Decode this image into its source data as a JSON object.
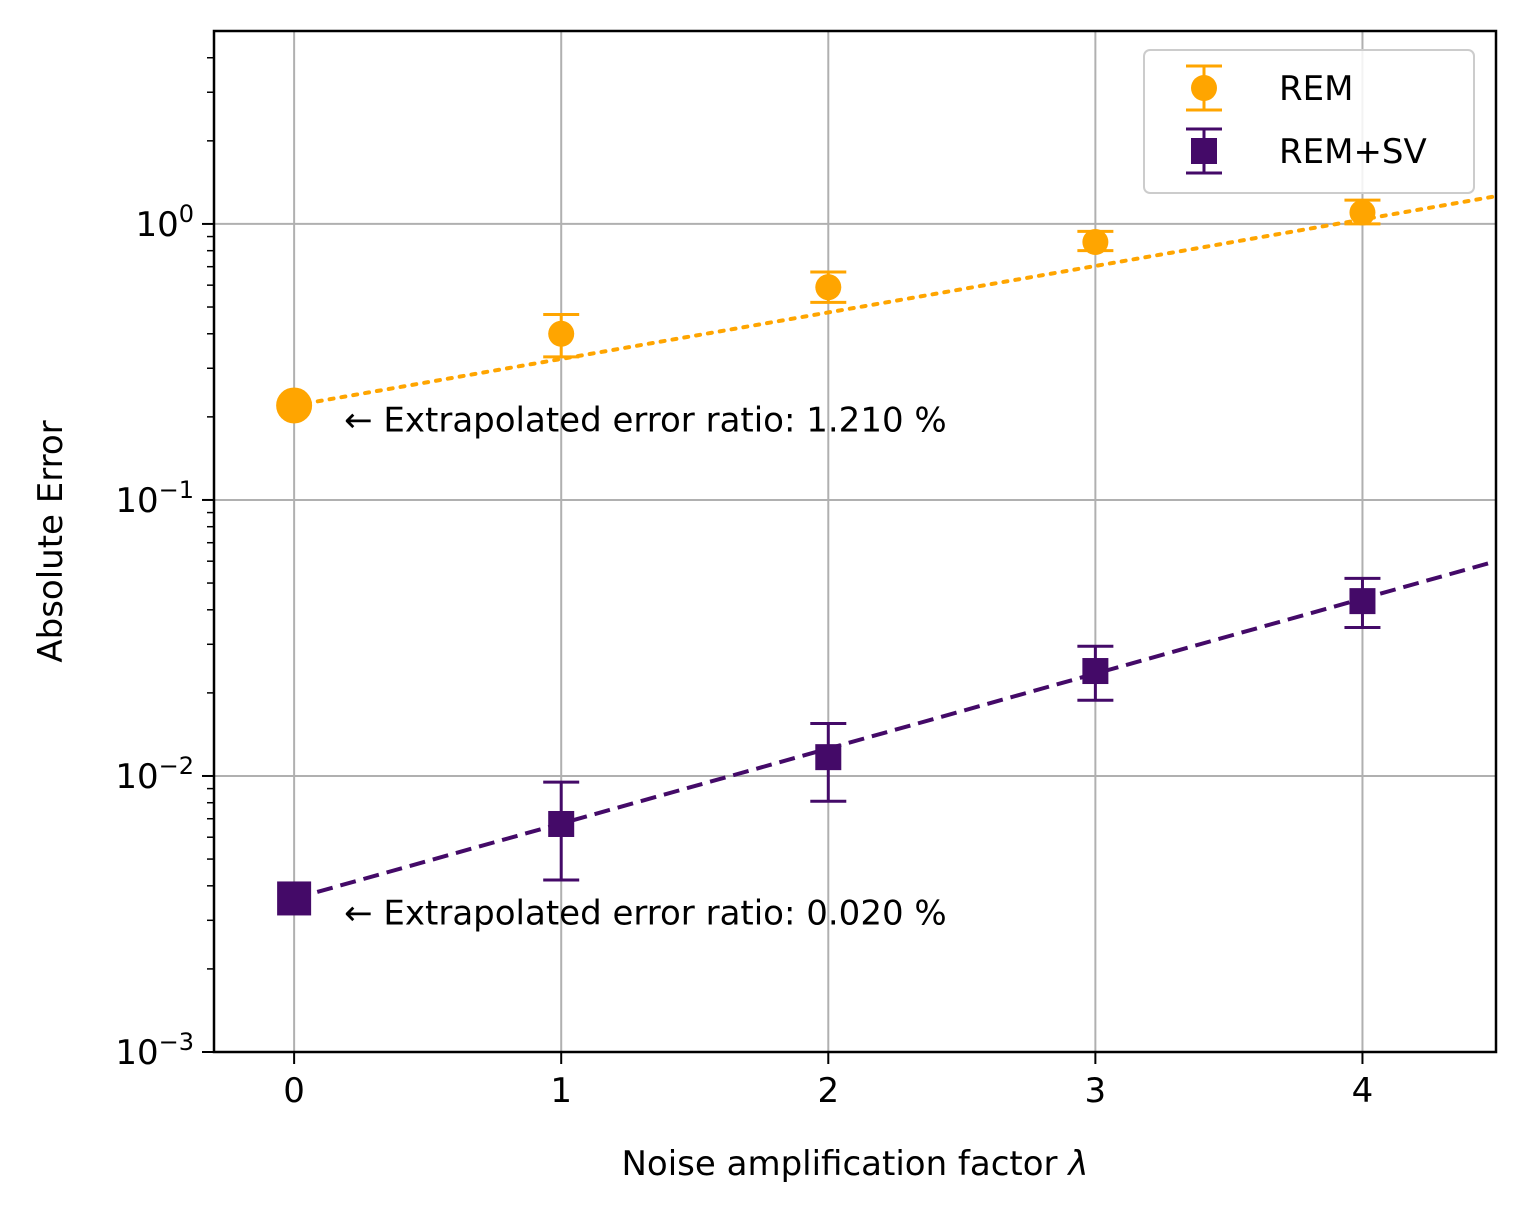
{
  "chart_data": {
    "type": "scatter",
    "xlabel": "Noise amplification factor",
    "xlabel_symbol": "λ",
    "ylabel": "Absolute Error",
    "xlim": [
      -0.3,
      4.5
    ],
    "ylim": [
      0.001,
      5
    ],
    "yscale": "log",
    "grid": true,
    "legend_position": "top-right",
    "x_ticks": [
      {
        "value": 0,
        "label": "0"
      },
      {
        "value": 1,
        "label": "1"
      },
      {
        "value": 2,
        "label": "2"
      },
      {
        "value": 3,
        "label": "3"
      },
      {
        "value": 4,
        "label": "4"
      }
    ],
    "y_ticks": [
      {
        "value": 0.001,
        "base": "10",
        "exp": "−3"
      },
      {
        "value": 0.01,
        "base": "10",
        "exp": "−2"
      },
      {
        "value": 0.1,
        "base": "10",
        "exp": "−1"
      },
      {
        "value": 1,
        "base": "10",
        "exp": "0"
      }
    ],
    "series": [
      {
        "name": "REM",
        "color": "#FFA500",
        "marker": "circle",
        "fit_style": "dotted",
        "x": [
          1,
          2,
          3,
          4
        ],
        "y": [
          0.4,
          0.59,
          0.86,
          1.1
        ],
        "y_err_low": [
          0.33,
          0.52,
          0.8,
          1.0
        ],
        "y_err_high": [
          0.47,
          0.67,
          0.94,
          1.22
        ],
        "fit": {
          "x0": 0,
          "y0": 0.22,
          "y_at_xmax": 1.26
        },
        "extrapolated": {
          "x": 0,
          "y": 0.22
        },
        "annotation": "← Extrapolated error ratio: 1.210 %"
      },
      {
        "name": "REM+SV",
        "color": "#440A68",
        "marker": "square",
        "fit_style": "dashed",
        "x": [
          1,
          2,
          3,
          4
        ],
        "y": [
          0.0067,
          0.0117,
          0.024,
          0.043
        ],
        "y_err_low": [
          0.0042,
          0.0081,
          0.0188,
          0.0345
        ],
        "y_err_high": [
          0.0095,
          0.0155,
          0.0295,
          0.052
        ],
        "fit": {
          "x0": 0,
          "y0": 0.0036,
          "y_at_xmax": 0.06
        },
        "extrapolated": {
          "x": 0,
          "y": 0.0036
        },
        "annotation": "← Extrapolated error ratio: 0.020 %"
      }
    ]
  }
}
